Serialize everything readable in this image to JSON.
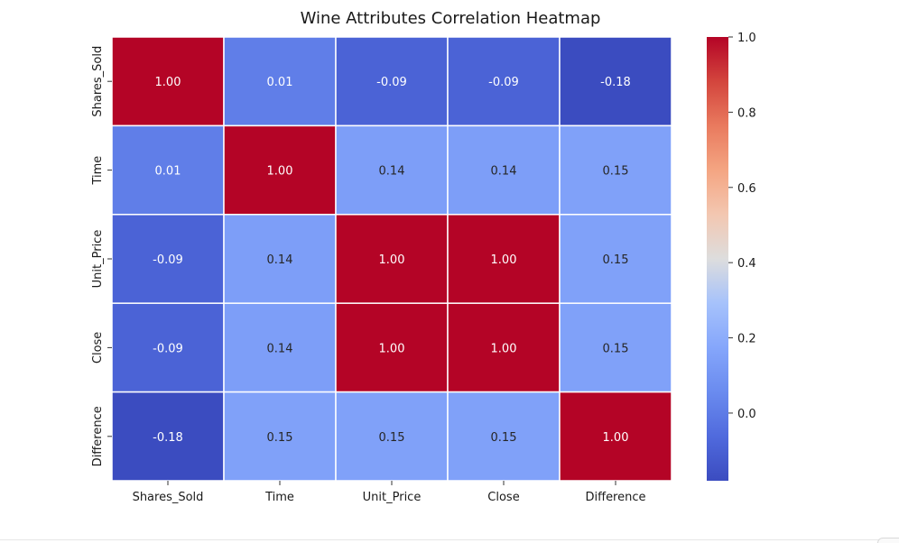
{
  "chart_data": {
    "type": "heatmap",
    "title": "Wine Attributes Correlation Heatmap",
    "xlabel": "",
    "ylabel": "",
    "x_categories": [
      "Shares_Sold",
      "Time",
      "Unit_Price",
      "Close",
      "Difference"
    ],
    "y_categories": [
      "Shares_Sold",
      "Time",
      "Unit_Price",
      "Close",
      "Difference"
    ],
    "values": [
      [
        1.0,
        0.01,
        -0.09,
        -0.09,
        -0.18
      ],
      [
        0.01,
        1.0,
        0.14,
        0.14,
        0.15
      ],
      [
        -0.09,
        0.14,
        1.0,
        1.0,
        0.15
      ],
      [
        -0.09,
        0.14,
        1.0,
        1.0,
        0.15
      ],
      [
        -0.18,
        0.15,
        0.15,
        0.15,
        1.0
      ]
    ],
    "value_format": "0.00",
    "colormap": "coolwarm",
    "colorbar": {
      "min": -0.18,
      "max": 1.0,
      "ticks": [
        0.0,
        0.2,
        0.4,
        0.6,
        0.8,
        1.0
      ],
      "tick_labels": [
        "0.0",
        "0.2",
        "0.4",
        "0.6",
        "0.8",
        "1.0"
      ]
    }
  }
}
